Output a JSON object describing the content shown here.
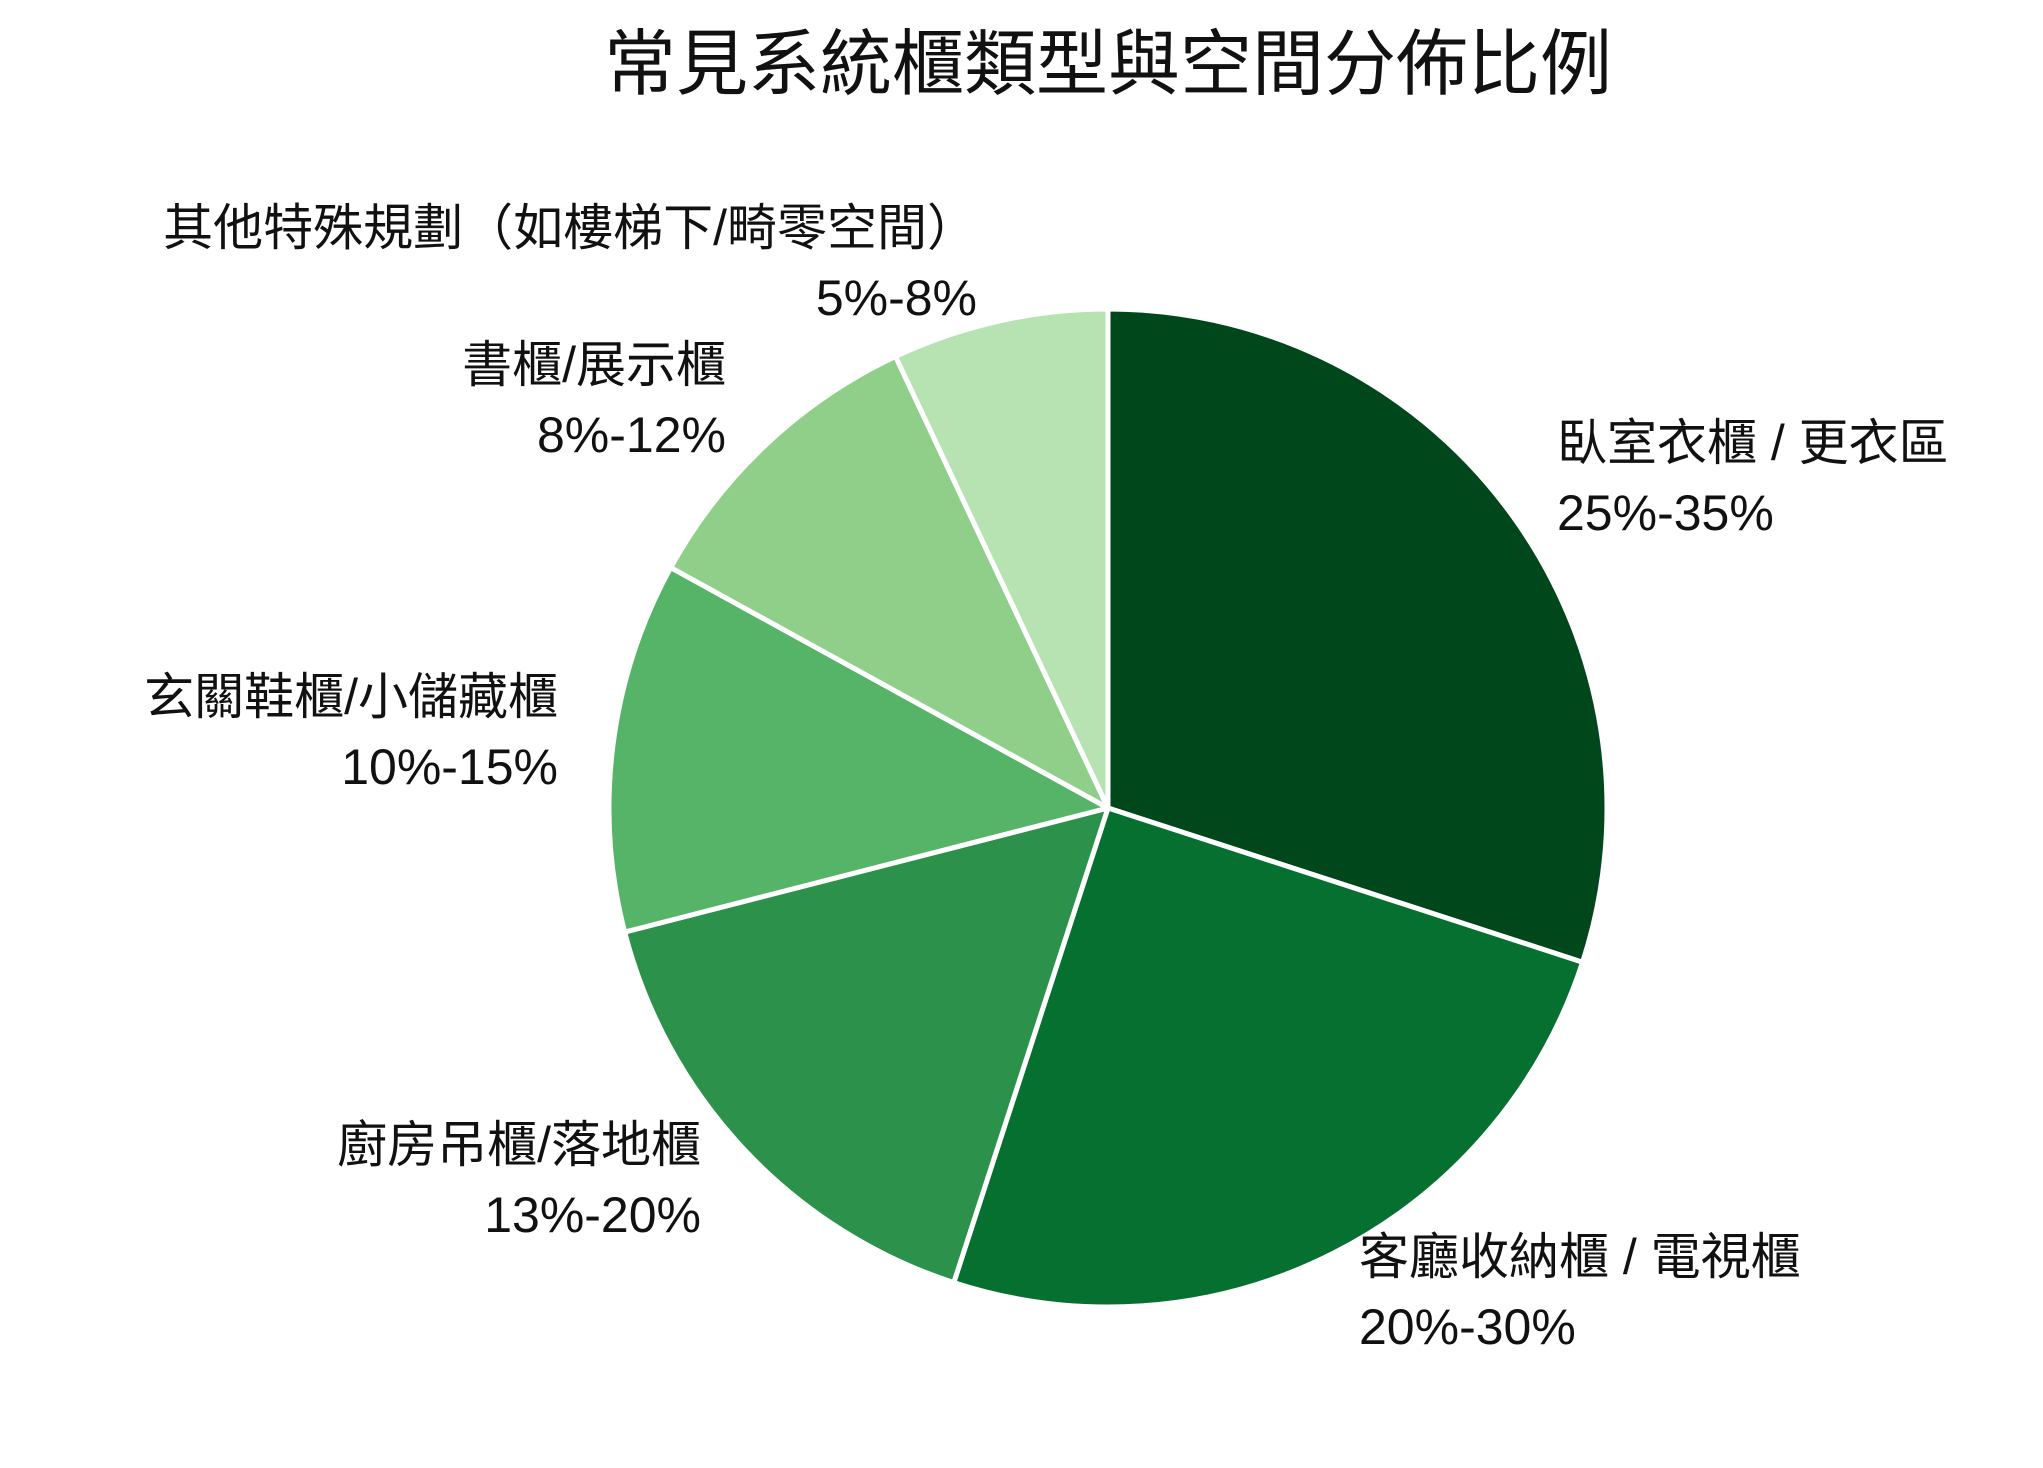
{
  "chart_data": {
    "type": "pie",
    "title": "常見系統櫃類型與空間分佈比例",
    "categories": [
      "臥室衣櫃 / 更衣區",
      "客廳收納櫃 / 電視櫃",
      "廚房吊櫃/落地櫃",
      "玄關鞋櫃/小儲藏櫃",
      "書櫃/展示櫃",
      "其他特殊規劃（如樓梯下/畸零空間）"
    ],
    "values": [
      30,
      25,
      16,
      12,
      10,
      7
    ],
    "value_labels": [
      "25%-35%",
      "20%-30%",
      "13%-20%",
      "10%-15%",
      "8%-12%",
      "5%-8%"
    ],
    "colors": [
      "#00471b",
      "#05702f",
      "#2c924b",
      "#56b468",
      "#90cf8a",
      "#b7e2b1"
    ]
  }
}
